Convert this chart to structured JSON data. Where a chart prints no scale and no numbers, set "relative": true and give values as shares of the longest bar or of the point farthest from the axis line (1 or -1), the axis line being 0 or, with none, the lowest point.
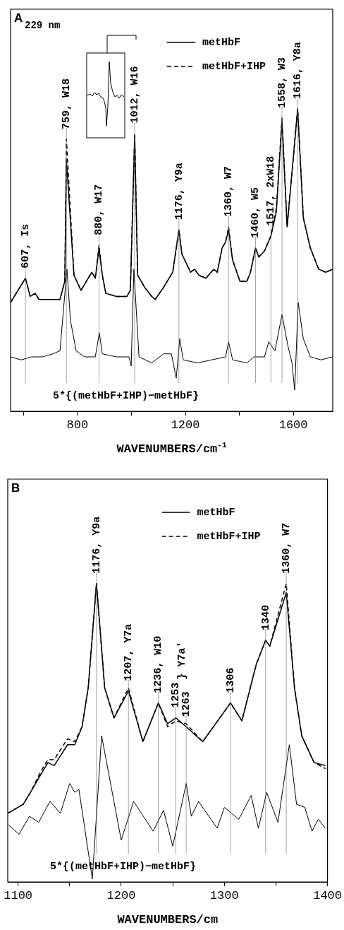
{
  "chart_data": [
    {
      "type": "line",
      "title": "A",
      "subtitle": "229 nm",
      "xlabel": "WAVENUMBERS/cm$^{-1}$",
      "relative": true,
      "legend": "top right",
      "marker": "none",
      "grid": false,
      "xlim": [
        552,
        1746
      ],
      "xticks": [
        {
          "value": 600,
          "label": null
        },
        800,
        {
          "value": 1000,
          "label": null
        },
        1200,
        {
          "value": 1400,
          "label": null
        },
        1600
      ],
      "series": [
        {
          "name": "metHbF",
          "color": "#000000",
          "line_style": "solid",
          "x": [
            552,
            607,
            625,
            643,
            657,
            735,
            753,
            759,
            787,
            813,
            853,
            866,
            880,
            892,
            905,
            944,
            983,
            996,
            1012,
            1023,
            1049,
            1075,
            1088,
            1119,
            1153,
            1176,
            1187,
            1203,
            1219,
            1234,
            1250,
            1276,
            1305,
            1318,
            1336,
            1349,
            1360,
            1375,
            1402,
            1428,
            1441,
            1460,
            1472,
            1493,
            1517,
            1537,
            1558,
            1577,
            1616,
            1637,
            1663,
            1694,
            1720,
            1746
          ],
          "values": [
            0.36,
            0.44,
            0.38,
            0.39,
            0.37,
            0.37,
            0.43,
            0.83,
            0.45,
            0.4,
            0.46,
            0.44,
            0.54,
            0.45,
            0.39,
            0.38,
            0.38,
            0.4,
            0.91,
            0.45,
            0.41,
            0.38,
            0.37,
            0.41,
            0.46,
            0.6,
            0.52,
            0.49,
            0.46,
            0.47,
            0.45,
            0.44,
            0.47,
            0.46,
            0.54,
            0.56,
            0.6,
            0.5,
            0.43,
            0.43,
            0.46,
            0.54,
            0.51,
            0.53,
            0.58,
            0.66,
            0.96,
            0.61,
            1.0,
            0.64,
            0.54,
            0.47,
            0.46,
            0.47
          ]
        },
        {
          "name": "metHbF+IHP",
          "color": "#000000",
          "line_style": "dashed",
          "x": [
            552,
            607,
            625,
            643,
            657,
            735,
            753,
            759,
            787,
            813,
            853,
            866,
            880,
            892,
            905,
            944,
            983,
            996,
            1012,
            1023,
            1049,
            1075,
            1088,
            1119,
            1153,
            1176,
            1187,
            1203,
            1219,
            1234,
            1250,
            1276,
            1305,
            1318,
            1336,
            1349,
            1360,
            1375,
            1402,
            1428,
            1441,
            1460,
            1472,
            1493,
            1517,
            1537,
            1558,
            1577,
            1616,
            1637,
            1663,
            1694,
            1720,
            1746
          ],
          "values": [
            0.36,
            0.44,
            0.38,
            0.39,
            0.37,
            0.37,
            0.43,
            0.9,
            0.45,
            0.4,
            0.46,
            0.44,
            0.55,
            0.45,
            0.39,
            0.38,
            0.38,
            0.4,
            0.92,
            0.45,
            0.41,
            0.38,
            0.37,
            0.41,
            0.46,
            0.6,
            0.52,
            0.49,
            0.46,
            0.47,
            0.45,
            0.44,
            0.47,
            0.46,
            0.54,
            0.56,
            0.61,
            0.5,
            0.43,
            0.43,
            0.46,
            0.54,
            0.51,
            0.53,
            0.58,
            0.67,
            0.97,
            0.61,
            1.0,
            0.64,
            0.54,
            0.47,
            0.46,
            0.47
          ]
        },
        {
          "color": "#000000",
          "line_style": "solid",
          "x": [
            552,
            591,
            630,
            670,
            709,
            735,
            761,
            774,
            795,
            826,
            866,
            881,
            892,
            944,
            991,
            999,
            1009,
            1028,
            1075,
            1119,
            1148,
            1166,
            1179,
            1192,
            1245,
            1297,
            1349,
            1360,
            1375,
            1428,
            1454,
            1493,
            1509,
            1532,
            1558,
            1579,
            1595,
            1605,
            1618,
            1637,
            1663,
            1702,
            1746
          ],
          "values": [
            0.18,
            0.17,
            0.18,
            0.18,
            0.19,
            0.2,
            0.47,
            0.3,
            0.2,
            0.18,
            0.18,
            0.26,
            0.19,
            0.18,
            0.18,
            0.15,
            0.47,
            0.18,
            0.16,
            0.19,
            0.19,
            0.11,
            0.24,
            0.17,
            0.16,
            0.17,
            0.18,
            0.23,
            0.17,
            0.16,
            0.18,
            0.18,
            0.23,
            0.2,
            0.32,
            0.22,
            0.16,
            0.07,
            0.36,
            0.24,
            0.18,
            0.17,
            0.18
          ]
        }
      ],
      "annotations": [
        {
          "text": "607, Is",
          "x": 607,
          "y": 0.44
        },
        {
          "text": "759, W18",
          "x": 759,
          "y": 0.9
        },
        {
          "text": "880, W17",
          "x": 880,
          "y": 0.55
        },
        {
          "text": "1012, W16",
          "x": 1012,
          "y": 0.92
        },
        {
          "text": "1176, Y9a",
          "x": 1176,
          "y": 0.6
        },
        {
          "text": "1360, W7",
          "x": 1360,
          "y": 0.61
        },
        {
          "text": "1460, W5",
          "x": 1460,
          "y": 0.54
        },
        {
          "text": "1517, 2xW18",
          "x": 1517,
          "y": 0.58
        },
        {
          "text": "1558, W3",
          "x": 1558,
          "y": 0.97
        },
        {
          "text": "1616, Y8a",
          "x": 1616,
          "y": 1.0
        },
        "5*{(metHbF+IHP)−metHbF}"
      ],
      "ylim": [
        0,
        1.33
      ]
    },
    {
      "type": "line",
      "title": "B",
      "xlabel": "WAVENUMBERS/cm",
      "relative": true,
      "legend": "top right",
      "marker": "none",
      "grid": false,
      "xlim": [
        1090,
        1400
      ],
      "xticks": [
        1100,
        {
          "value": 1150,
          "label": null
        },
        1200,
        {
          "value": 1250,
          "label": null
        },
        1300,
        {
          "value": 1350,
          "label": null
        },
        1400
      ],
      "series": [
        {
          "name": "metHbF",
          "color": "#000000",
          "line_style": "solid",
          "x": [
            1090,
            1105,
            1112,
            1122,
            1129,
            1135,
            1148,
            1155,
            1162,
            1168,
            1176,
            1184,
            1193,
            1207,
            1221,
            1236,
            1245,
            1253,
            1263,
            1279,
            1306,
            1317,
            1331,
            1340,
            1344,
            1360,
            1368,
            1375,
            1387,
            1398
          ],
          "values": [
            0.23,
            0.26,
            0.3,
            0.36,
            0.4,
            0.39,
            0.46,
            0.46,
            0.52,
            0.65,
            1.0,
            0.65,
            0.55,
            0.64,
            0.47,
            0.6,
            0.53,
            0.55,
            0.52,
            0.47,
            0.6,
            0.54,
            0.73,
            0.81,
            0.79,
            0.97,
            0.65,
            0.49,
            0.4,
            0.39
          ]
        },
        {
          "name": "metHbF+IHP",
          "color": "#000000",
          "line_style": "dashed",
          "x": [
            1090,
            1105,
            1112,
            1122,
            1129,
            1135,
            1148,
            1155,
            1162,
            1168,
            1176,
            1184,
            1193,
            1207,
            1221,
            1236,
            1245,
            1253,
            1263,
            1279,
            1306,
            1317,
            1331,
            1340,
            1344,
            1360,
            1368,
            1375,
            1387,
            1398
          ],
          "values": [
            0.23,
            0.26,
            0.3,
            0.37,
            0.41,
            0.41,
            0.48,
            0.47,
            0.52,
            0.65,
            1.0,
            0.65,
            0.55,
            0.65,
            0.47,
            0.6,
            0.52,
            0.54,
            0.53,
            0.47,
            0.6,
            0.54,
            0.73,
            0.81,
            0.79,
            1.0,
            0.65,
            0.49,
            0.4,
            0.38
          ]
        },
        {
          "color": "#000000",
          "line_style": "solid",
          "x": [
            1091,
            1101,
            1111,
            1120,
            1131,
            1141,
            1150,
            1155,
            1159,
            1172,
            1181,
            1200,
            1212,
            1231,
            1241,
            1250,
            1263,
            1268,
            1275,
            1293,
            1300,
            1314,
            1326,
            1333,
            1341,
            1352,
            1363,
            1370,
            1378,
            1385,
            1391,
            1398
          ],
          "values": [
            0.19,
            0.16,
            0.22,
            0.2,
            0.27,
            0.23,
            0.33,
            0.3,
            0.31,
            0.01,
            0.49,
            0.14,
            0.27,
            0.17,
            0.24,
            0.12,
            0.33,
            0.22,
            0.27,
            0.18,
            0.25,
            0.21,
            0.29,
            0.18,
            0.3,
            0.2,
            0.46,
            0.26,
            0.25,
            0.17,
            0.21,
            0.18
          ]
        }
      ],
      "annotations": [
        {
          "text": "1176, Y9a",
          "x": 1176,
          "y": 1.0
        },
        {
          "text": "1207, Y7a",
          "x": 1207,
          "y": 0.64
        },
        {
          "text": "1236, W10",
          "x": 1236,
          "y": 0.6
        },
        {
          "text": "1253",
          "x": 1253,
          "y": 0.55
        },
        {
          "text": "1263",
          "x": 1263,
          "y": 0.52
        },
        "} Y7a'",
        {
          "text": "1306",
          "x": 1306,
          "y": 0.6
        },
        {
          "text": "1340",
          "x": 1340,
          "y": 0.81
        },
        {
          "text": "1360, W7",
          "x": 1360,
          "y": 1.0
        },
        "5*{(metHbF+IHP)−metHbF}"
      ],
      "ylim": [
        0,
        1.35
      ]
    }
  ]
}
